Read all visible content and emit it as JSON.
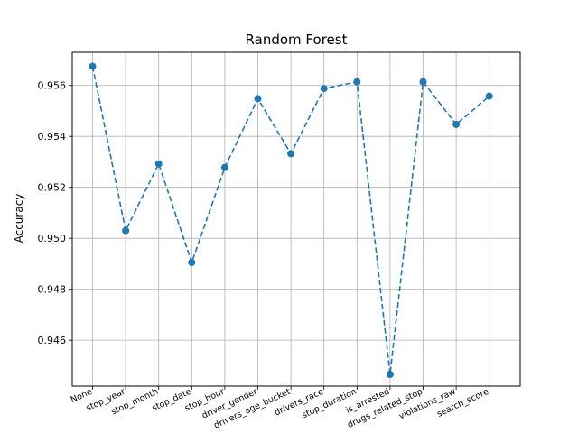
{
  "chart_data": {
    "type": "line",
    "title": "Random Forest",
    "xlabel": "",
    "ylabel": "Accuracy",
    "categories": [
      "None",
      "stop_year",
      "stop_month",
      "stop_date",
      "stop_hour",
      "driver_gender",
      "drivers_age_bucket",
      "drivers_race",
      "stop_duration",
      "is_arrested",
      "drugs_related_stop",
      "violations_raw",
      "search_score"
    ],
    "series": [
      {
        "values": [
          0.95675,
          0.9503,
          0.95292,
          0.94905,
          0.95278,
          0.95548,
          0.95332,
          0.95588,
          0.95614,
          0.94466,
          0.95614,
          0.95447,
          0.95558
        ],
        "color": "#1f77b4",
        "line_style": "dashed",
        "marker": "circle"
      }
    ],
    "ylim": [
      0.9442,
      0.9573
    ],
    "yticks": [
      "0.946",
      "0.948",
      "0.950",
      "0.952",
      "0.954",
      "0.956"
    ],
    "ytick_values": [
      0.946,
      0.948,
      0.95,
      0.952,
      0.954,
      0.956
    ],
    "grid": true,
    "legend": "none"
  }
}
